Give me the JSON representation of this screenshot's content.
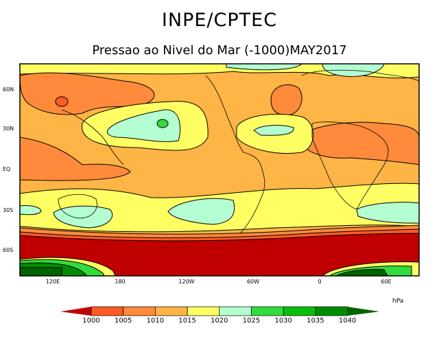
{
  "header": {
    "title": "INPE/CPTEC",
    "subtitle": "Pressao ao Nivel do Mar (-1000)MAY2017"
  },
  "map": {
    "lat_labels": [
      "60N",
      "30N",
      "EQ",
      "30S",
      "60S"
    ],
    "lon_labels": [
      "120E",
      "180",
      "120W",
      "60W",
      "0",
      "60E"
    ]
  },
  "colorbar": {
    "unit": "hPa",
    "labels": [
      "1000",
      "1005",
      "1010",
      "1015",
      "1020",
      "1025",
      "1030",
      "1035",
      "1040"
    ],
    "colors": [
      "#c00000",
      "#ff5a28",
      "#ff8a3c",
      "#ffb446",
      "#ffff64",
      "#b4ffd2",
      "#32dc3c",
      "#0abe0a",
      "#008c00",
      "#006400"
    ]
  }
}
